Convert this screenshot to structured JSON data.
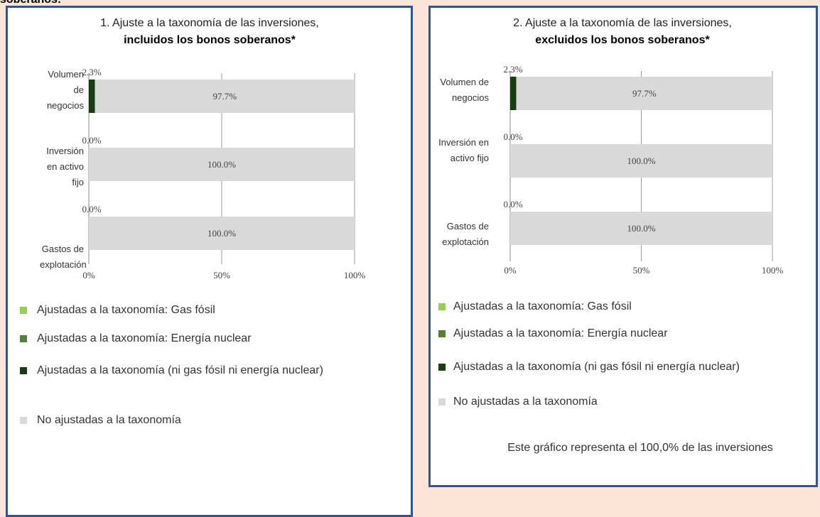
{
  "heading": "soberanos:",
  "chart_data": [
    {
      "type": "bar",
      "orientation": "horizontal",
      "stacked": true,
      "title": "1. Ajuste a la taxonomía de las inversiones,",
      "subtitle": "incluidos los bonos soberanos*",
      "categories": [
        "Volumen de negocios",
        "Inversión en activo fijo",
        "Gastos de explotación"
      ],
      "series": [
        {
          "name": "Ajustadas a la taxonomía: Gas fósil",
          "color": "#92d050",
          "values": [
            0,
            0,
            0
          ]
        },
        {
          "name": "Ajustadas a la taxonomía: Energía nuclear",
          "color": "#548235",
          "values": [
            0,
            0,
            0
          ]
        },
        {
          "name": "Ajustadas a la taxonomía (ni gas fósil ni energía nuclear)",
          "color": "#173d10",
          "values": [
            2.3,
            0,
            0
          ],
          "value_labels": [
            "2.3%",
            "0.0%",
            "0.0%"
          ]
        },
        {
          "name": "No ajustadas a la taxonomía",
          "color": "#d9d9d9",
          "values": [
            97.7,
            100,
            100
          ],
          "value_labels": [
            "97.7%",
            "100.0%",
            "100.0%"
          ]
        }
      ],
      "xlim": [
        0,
        100
      ],
      "xticks": [
        {
          "value": 0,
          "label": "0%"
        },
        {
          "value": 50,
          "label": "50%"
        },
        {
          "value": 100,
          "label": "100%"
        }
      ],
      "grid": true
    },
    {
      "type": "bar",
      "orientation": "horizontal",
      "stacked": true,
      "title": "2. Ajuste a la taxonomía de las inversiones,",
      "subtitle": "excluidos los bonos soberanos*",
      "categories": [
        "Volumen de negocios",
        "Inversión en activo fijo",
        "Gastos de explotación"
      ],
      "series": [
        {
          "name": "Ajustadas a la taxonomía: Gas fósil",
          "color": "#92d050",
          "values": [
            0,
            0,
            0
          ]
        },
        {
          "name": "Ajustadas a la taxonomía: Energía nuclear",
          "color": "#548235",
          "values": [
            0,
            0,
            0
          ]
        },
        {
          "name": "Ajustadas a la taxonomía (ni gas fósil ni energía nuclear)",
          "color": "#173d10",
          "values": [
            2.3,
            0,
            0
          ],
          "value_labels": [
            "2.3%",
            "0.0%",
            "0.0%"
          ]
        },
        {
          "name": "No ajustadas a la taxonomía",
          "color": "#d9d9d9",
          "values": [
            97.7,
            100,
            100
          ],
          "value_labels": [
            "97.7%",
            "100.0%",
            "100.0%"
          ]
        }
      ],
      "xlim": [
        0,
        100
      ],
      "xticks": [
        {
          "value": 0,
          "label": "0%"
        },
        {
          "value": 50,
          "label": "50%"
        },
        {
          "value": 100,
          "label": "100%"
        }
      ],
      "grid": true,
      "note": "Este gráfico representa el 100,0% de las inversiones"
    }
  ]
}
